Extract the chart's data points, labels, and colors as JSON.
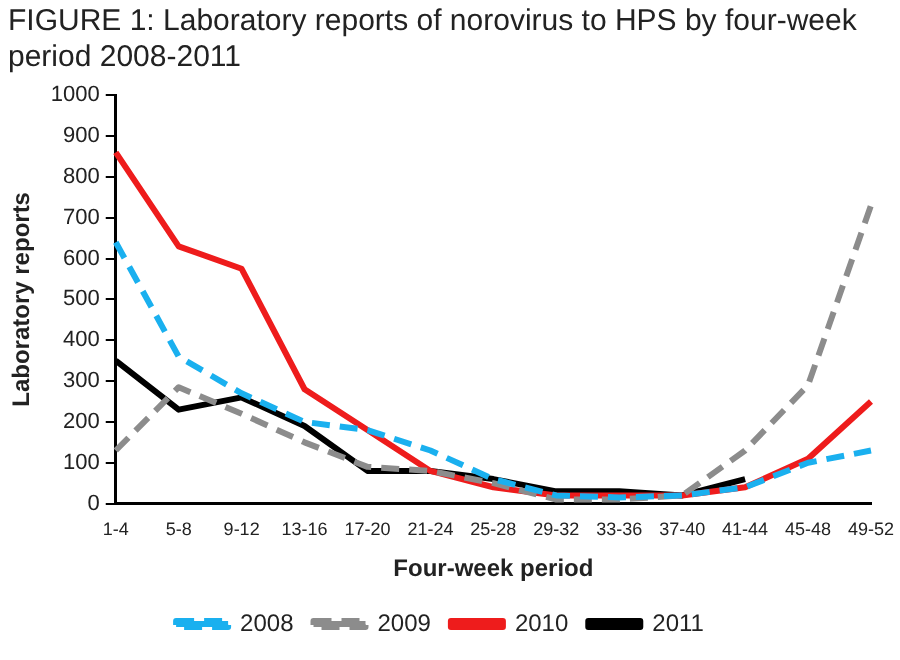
{
  "chart_data": {
    "type": "line",
    "title": "FIGURE 1: Laboratory reports of norovirus to HPS by four-week period 2008-2011",
    "xlabel": "Four-week period",
    "ylabel": "Laboratory reports",
    "categories": [
      "1-4",
      "5-8",
      "9-12",
      "13-16",
      "17-20",
      "21-24",
      "25-28",
      "29-32",
      "33-36",
      "37-40",
      "41-44",
      "45-48",
      "49-52"
    ],
    "series": [
      {
        "name": "2008",
        "color": "#1ab0ef",
        "line_style": "dashed",
        "values": [
          640,
          360,
          270,
          200,
          180,
          130,
          60,
          20,
          15,
          20,
          40,
          100,
          130
        ]
      },
      {
        "name": "2009",
        "color": "#8c8c8c",
        "line_style": "dashed",
        "values": [
          130,
          285,
          220,
          150,
          90,
          80,
          50,
          10,
          10,
          20,
          130,
          290,
          730
        ]
      },
      {
        "name": "2010",
        "color": "#ee1c1c",
        "line_style": "solid",
        "values": [
          860,
          630,
          575,
          280,
          180,
          80,
          40,
          20,
          20,
          20,
          40,
          110,
          250
        ]
      },
      {
        "name": "2011",
        "color": "#000000",
        "line_style": "solid",
        "values": [
          350,
          230,
          260,
          190,
          80,
          80,
          60,
          30,
          30,
          20,
          60,
          null,
          null
        ]
      }
    ],
    "ylim": [
      0,
      1000
    ],
    "yticks": [
      0,
      100,
      200,
      300,
      400,
      500,
      600,
      700,
      800,
      900,
      1000
    ],
    "grid": false,
    "legend": "bottom",
    "marker": "none"
  }
}
